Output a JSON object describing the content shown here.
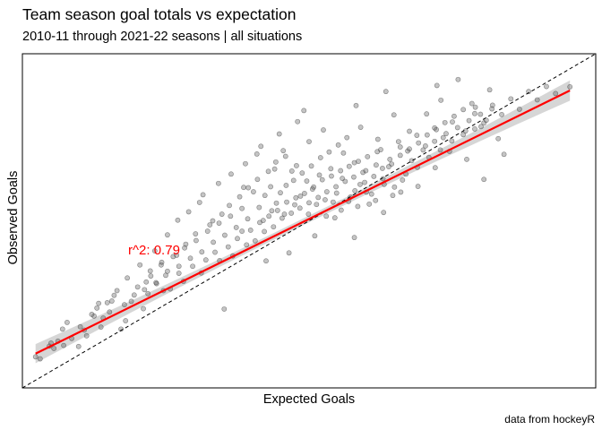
{
  "chart_data": {
    "type": "scatter",
    "title": "Team season goal totals vs expectation",
    "subtitle": "2010-11 through 2021-22 seasons | all situations",
    "xlabel": "Expected Goals",
    "ylabel": "Observed Goals",
    "caption": "data from hockeyR",
    "annotation": "r^2: 0.79",
    "grid": false,
    "colors": {
      "points": "#555555",
      "fit_line": "#ff0000",
      "ribbon": "#c8c8c8",
      "identity_line": "#000000"
    },
    "xlim": [
      0,
      100
    ],
    "ylim": [
      0,
      100
    ],
    "fit": {
      "intercept": 8.3,
      "slope": 0.845
    },
    "identity_line": true,
    "points": [
      [
        95.5,
        90.1
      ],
      [
        2.3,
        9.3
      ],
      [
        3.1,
        8.7
      ],
      [
        4.7,
        12.5
      ],
      [
        5.5,
        11.8
      ],
      [
        7.0,
        17.6
      ],
      [
        7.8,
        19.6
      ],
      [
        6.2,
        14.0
      ],
      [
        12.5,
        21.5
      ],
      [
        14.1,
        20.9
      ],
      [
        15.6,
        26.0
      ],
      [
        13.3,
        25.3
      ],
      [
        17.2,
        17.6
      ],
      [
        18.0,
        20.1
      ],
      [
        19.5,
        27.8
      ],
      [
        21.1,
        23.7
      ],
      [
        21.9,
        28.2
      ],
      [
        23.4,
        31.2
      ],
      [
        25.0,
        33.7
      ],
      [
        25.8,
        29.6
      ],
      [
        27.3,
        34.3
      ],
      [
        28.1,
        31.9
      ],
      [
        29.7,
        36.4
      ],
      [
        31.2,
        34.4
      ],
      [
        32.0,
        38.3
      ],
      [
        33.6,
        40.6
      ],
      [
        34.4,
        38.1
      ],
      [
        35.9,
        42.2
      ],
      [
        36.7,
        39.5
      ],
      [
        37.5,
        44.7
      ],
      [
        38.3,
        46.9
      ],
      [
        39.1,
        42.8
      ],
      [
        39.8,
        47.2
      ],
      [
        40.6,
        44.0
      ],
      [
        41.4,
        49.5
      ],
      [
        42.2,
        46.8
      ],
      [
        43.0,
        51.4
      ],
      [
        43.8,
        48.2
      ],
      [
        44.5,
        53.1
      ],
      [
        45.3,
        50.8
      ],
      [
        46.1,
        55.6
      ],
      [
        46.9,
        52.3
      ],
      [
        47.7,
        56.9
      ],
      [
        48.4,
        53.8
      ],
      [
        49.2,
        58.2
      ],
      [
        50.0,
        55.4
      ],
      [
        50.8,
        60.1
      ],
      [
        51.6,
        57.0
      ],
      [
        52.3,
        62.3
      ],
      [
        53.1,
        58.7
      ],
      [
        53.9,
        63.4
      ],
      [
        54.7,
        60.2
      ],
      [
        55.5,
        65.0
      ],
      [
        56.3,
        61.8
      ],
      [
        57.0,
        66.3
      ],
      [
        57.8,
        63.1
      ],
      [
        58.6,
        67.8
      ],
      [
        59.4,
        64.5
      ],
      [
        60.2,
        69.2
      ],
      [
        61.7,
        66.7
      ],
      [
        62.5,
        71.3
      ],
      [
        64.1,
        68.4
      ],
      [
        65.6,
        73.7
      ],
      [
        67.2,
        70.9
      ],
      [
        68.8,
        75.6
      ],
      [
        70.3,
        72.4
      ],
      [
        71.9,
        77.8
      ],
      [
        73.4,
        74.9
      ],
      [
        75.0,
        79.6
      ],
      [
        77.3,
        76.9
      ],
      [
        78.9,
        82.1
      ],
      [
        80.5,
        79.3
      ],
      [
        82.0,
        84.6
      ],
      [
        83.6,
        81.8
      ],
      [
        85.2,
        86.5
      ],
      [
        86.7,
        83.4
      ],
      [
        88.3,
        88.7
      ],
      [
        89.8,
        86.2
      ],
      [
        91.4,
        90.2
      ],
      [
        93.0,
        88.1
      ],
      [
        30.9,
        55.5
      ],
      [
        33.2,
        50.0
      ],
      [
        35.2,
        23.6
      ],
      [
        38.6,
        60.0
      ],
      [
        40.9,
        70.0
      ],
      [
        42.5,
        38.0
      ],
      [
        44.0,
        65.5
      ],
      [
        45.5,
        71.0
      ],
      [
        46.5,
        40.4
      ],
      [
        47.8,
        66.5
      ],
      [
        50.0,
        73.7
      ],
      [
        51.0,
        45.5
      ],
      [
        52.5,
        77.2
      ],
      [
        54.5,
        50.9
      ],
      [
        56.0,
        70.3
      ],
      [
        57.9,
        45.0
      ],
      [
        59.0,
        78.0
      ],
      [
        60.5,
        55.0
      ],
      [
        62.0,
        74.4
      ],
      [
        63.0,
        52.5
      ],
      [
        64.8,
        81.7
      ],
      [
        66.0,
        58.6
      ],
      [
        67.5,
        76.8
      ],
      [
        69.0,
        60.3
      ],
      [
        70.5,
        82.0
      ],
      [
        72.0,
        65.9
      ],
      [
        73.0,
        86.1
      ],
      [
        74.5,
        70.8
      ],
      [
        76.0,
        92.3
      ],
      [
        77.5,
        68.4
      ],
      [
        79.0,
        84.0
      ],
      [
        80.5,
        62.4
      ],
      [
        81.5,
        89.2
      ],
      [
        83.0,
        74.6
      ],
      [
        84.0,
        69.9
      ],
      [
        80.0,
        78.2
      ],
      [
        72.3,
        90.5
      ],
      [
        63.4,
        88.7
      ],
      [
        58.2,
        84.5
      ],
      [
        49.1,
        83.0
      ],
      [
        48.0,
        79.7
      ],
      [
        44.8,
        76.0
      ],
      [
        41.6,
        72.3
      ],
      [
        38.9,
        67.1
      ],
      [
        36.4,
        64.0
      ],
      [
        34.2,
        61.2
      ],
      [
        31.5,
        57.8
      ],
      [
        29.0,
        52.7
      ],
      [
        27.1,
        50.2
      ],
      [
        25.3,
        45.8
      ],
      [
        23.1,
        41.0
      ],
      [
        20.5,
        36.8
      ],
      [
        18.3,
        32.9
      ],
      [
        16.5,
        29.1
      ],
      [
        14.8,
        25.5
      ],
      [
        12.1,
        22.0
      ],
      [
        10.1,
        18.3
      ],
      [
        8.6,
        14.8
      ],
      [
        9.8,
        12.4
      ],
      [
        11.2,
        15.6
      ],
      [
        13.7,
        18.2
      ],
      [
        15.2,
        22.7
      ],
      [
        17.8,
        24.9
      ],
      [
        20.1,
        30.2
      ],
      [
        22.4,
        33.5
      ],
      [
        24.2,
        36.8
      ],
      [
        26.9,
        39.7
      ],
      [
        28.5,
        43.0
      ],
      [
        30.2,
        46.1
      ],
      [
        32.7,
        48.8
      ],
      [
        34.8,
        52.0
      ],
      [
        36.1,
        54.6
      ],
      [
        37.9,
        57.2
      ],
      [
        39.4,
        59.9
      ],
      [
        41.0,
        62.4
      ],
      [
        42.9,
        64.8
      ],
      [
        44.2,
        67.6
      ],
      [
        45.9,
        69.3
      ],
      [
        47.3,
        62.1
      ],
      [
        48.8,
        64.3
      ],
      [
        50.4,
        66.4
      ],
      [
        52.0,
        68.9
      ],
      [
        53.5,
        70.6
      ],
      [
        55.1,
        72.7
      ],
      [
        56.6,
        74.9
      ],
      [
        58.0,
        59.0
      ],
      [
        59.7,
        61.5
      ],
      [
        61.3,
        63.3
      ],
      [
        62.8,
        65.7
      ],
      [
        64.4,
        67.0
      ],
      [
        65.9,
        69.6
      ],
      [
        67.5,
        71.5
      ],
      [
        69.1,
        73.3
      ],
      [
        70.6,
        75.7
      ],
      [
        72.2,
        77.3
      ],
      [
        73.7,
        79.4
      ],
      [
        75.3,
        81.3
      ],
      [
        76.9,
        83.3
      ],
      [
        78.4,
        85.1
      ],
      [
        45.0,
        58.4
      ],
      [
        46.0,
        60.6
      ],
      [
        47.0,
        64.9
      ],
      [
        48.5,
        57.4
      ],
      [
        49.6,
        61.9
      ],
      [
        50.6,
        59.5
      ],
      [
        51.8,
        63.7
      ],
      [
        52.8,
        56.3
      ],
      [
        53.8,
        65.6
      ],
      [
        54.8,
        58.3
      ],
      [
        55.8,
        62.7
      ],
      [
        56.9,
        55.8
      ],
      [
        57.9,
        67.4
      ],
      [
        58.9,
        60.9
      ],
      [
        59.9,
        65.0
      ],
      [
        60.9,
        58.0
      ],
      [
        61.9,
        70.7
      ],
      [
        62.9,
        62.6
      ],
      [
        63.9,
        66.2
      ],
      [
        64.9,
        60.1
      ],
      [
        65.9,
        72.1
      ],
      [
        44.3,
        55.3
      ],
      [
        43.3,
        60.2
      ],
      [
        42.3,
        57.6
      ],
      [
        41.3,
        54.0
      ],
      [
        40.3,
        58.7
      ],
      [
        39.3,
        50.6
      ],
      [
        38.3,
        53.7
      ],
      [
        37.3,
        48.0
      ],
      [
        36.3,
        51.4
      ],
      [
        35.3,
        45.7
      ],
      [
        34.3,
        49.3
      ],
      [
        33.3,
        43.6
      ],
      [
        32.3,
        46.9
      ],
      [
        31.3,
        40.7
      ],
      [
        30.3,
        44.1
      ],
      [
        29.3,
        38.8
      ],
      [
        28.3,
        41.9
      ],
      [
        27.3,
        36.4
      ],
      [
        26.3,
        39.3
      ],
      [
        25.3,
        34.9
      ],
      [
        24.3,
        37.6
      ],
      [
        23.3,
        31.5
      ],
      [
        22.3,
        35.0
      ],
      [
        21.3,
        29.4
      ],
      [
        66.9,
        64.0
      ],
      [
        67.9,
        68.0
      ],
      [
        68.9,
        66.0
      ],
      [
        69.9,
        71.2
      ],
      [
        70.9,
        69.0
      ],
      [
        71.9,
        73.8
      ],
      [
        72.9,
        71.2
      ],
      [
        73.9,
        76.1
      ],
      [
        74.9,
        73.9
      ],
      [
        75.9,
        77.9
      ],
      [
        76.9,
        75.8
      ],
      [
        77.9,
        80.0
      ],
      [
        78.9,
        77.5
      ],
      [
        79.9,
        81.9
      ],
      [
        80.9,
        80.1
      ],
      [
        81.9,
        83.5
      ],
      [
        5.0,
        13.4
      ],
      [
        7.2,
        12.7
      ],
      [
        10.8,
        17.3
      ],
      [
        13.0,
        23.9
      ],
      [
        16.0,
        27.7
      ],
      [
        19.0,
        25.9
      ],
      [
        21.6,
        31.7
      ],
      [
        24.6,
        29.1
      ],
      [
        42.0,
        50.1
      ],
      [
        43.5,
        53.0
      ],
      [
        45.7,
        52.0
      ],
      [
        47.5,
        54.8
      ],
      [
        49.9,
        52.0
      ],
      [
        51.3,
        54.9
      ],
      [
        53.0,
        51.4
      ],
      [
        54.2,
        55.6
      ],
      [
        55.6,
        53.2
      ],
      [
        57.2,
        57.1
      ],
      [
        58.5,
        54.3
      ],
      [
        60.0,
        58.6
      ],
      [
        61.6,
        56.1
      ],
      [
        63.1,
        60.9
      ],
      [
        64.6,
        57.6
      ],
      [
        66.3,
        62.2
      ]
    ]
  }
}
